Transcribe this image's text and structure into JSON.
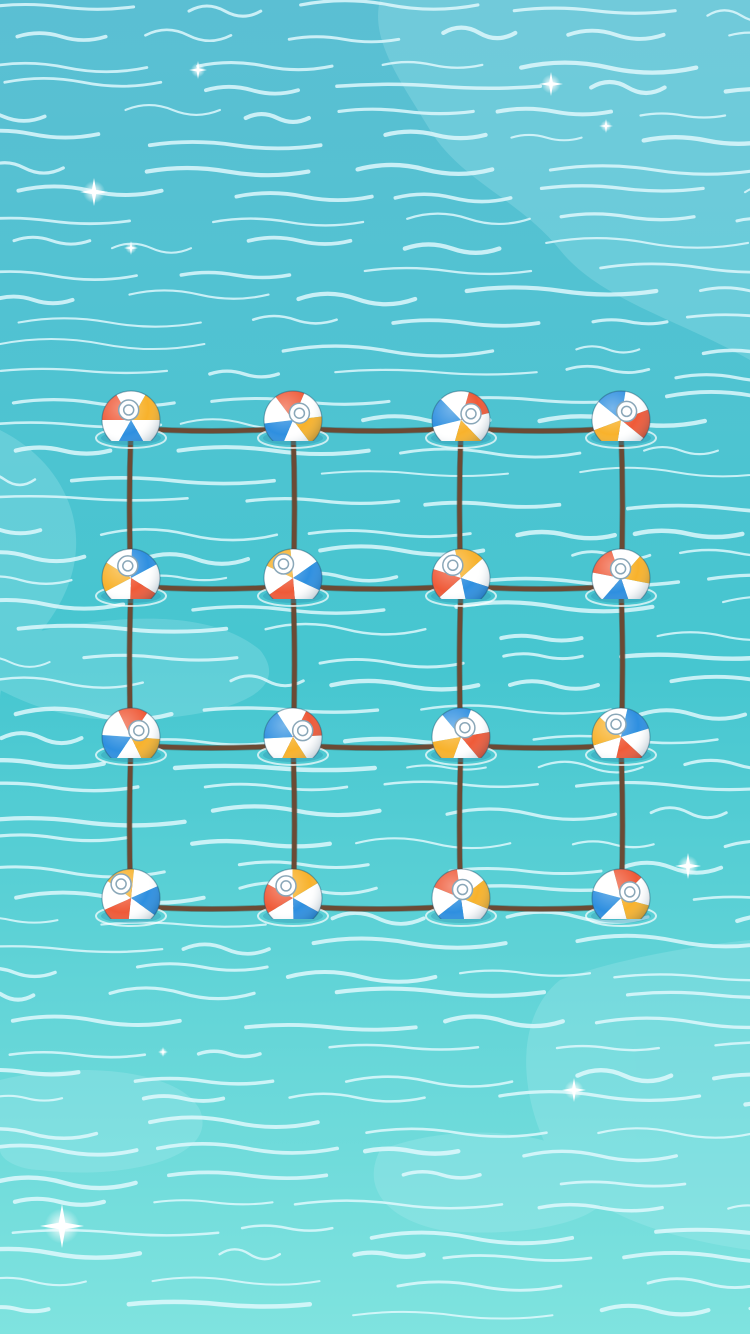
{
  "game": {
    "scene": "water",
    "grid": {
      "rows": 4,
      "cols": 4
    },
    "colors": {
      "water_top": "#5bbfd3",
      "water_mid": "#46c6d0",
      "water_bottom": "#7fe3df",
      "ripple": "#e6fbff",
      "rope": "#6b4a34",
      "ball_white": "#ffffff",
      "ball_blue": "#2e8fe0",
      "ball_red": "#ef5a38",
      "ball_orange": "#f8b22c"
    },
    "icons": {
      "node": "beach-ball-icon",
      "sparkle": "sparkle-icon"
    }
  }
}
